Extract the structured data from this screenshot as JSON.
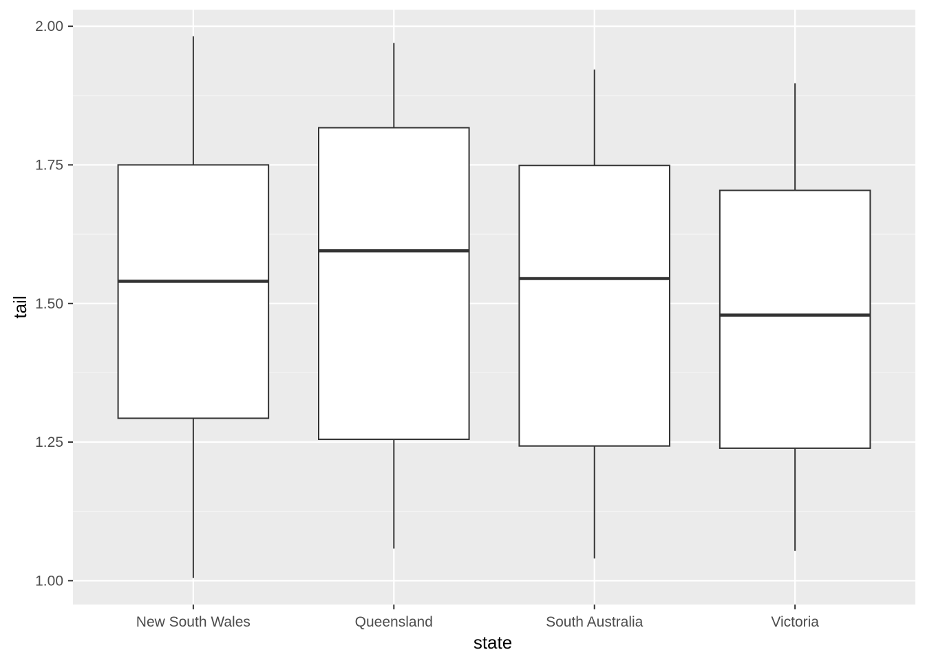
{
  "chart_data": {
    "type": "boxplot",
    "xlabel": "state",
    "ylabel": "tail",
    "categories": [
      "New South Wales",
      "Queensland",
      "South Australia",
      "Victoria"
    ],
    "boxes": [
      {
        "category": "New South Wales",
        "min": 1.005,
        "q1": 1.293,
        "median": 1.54,
        "q3": 1.75,
        "max": 1.982
      },
      {
        "category": "Queensland",
        "min": 1.058,
        "q1": 1.255,
        "median": 1.595,
        "q3": 1.817,
        "max": 1.97
      },
      {
        "category": "South Australia",
        "min": 1.04,
        "q1": 1.243,
        "median": 1.545,
        "q3": 1.749,
        "max": 1.922
      },
      {
        "category": "Victoria",
        "min": 1.054,
        "q1": 1.239,
        "median": 1.479,
        "q3": 1.704,
        "max": 1.897
      }
    ],
    "ylim": [
      0.957,
      2.03
    ],
    "yticks": [
      1.0,
      1.25,
      1.5,
      1.75,
      2.0
    ],
    "ytick_labels": [
      "1.00",
      "1.25",
      "1.50",
      "1.75",
      "2.00"
    ],
    "grid": true,
    "colors": {
      "panel_background": "#ebebeb",
      "grid_major": "#ffffff",
      "grid_minor": "#f5f5f5",
      "box_fill": "#ffffff",
      "box_stroke": "#333333",
      "tick_label": "#4d4d4d",
      "tick_mark": "#333333"
    }
  }
}
